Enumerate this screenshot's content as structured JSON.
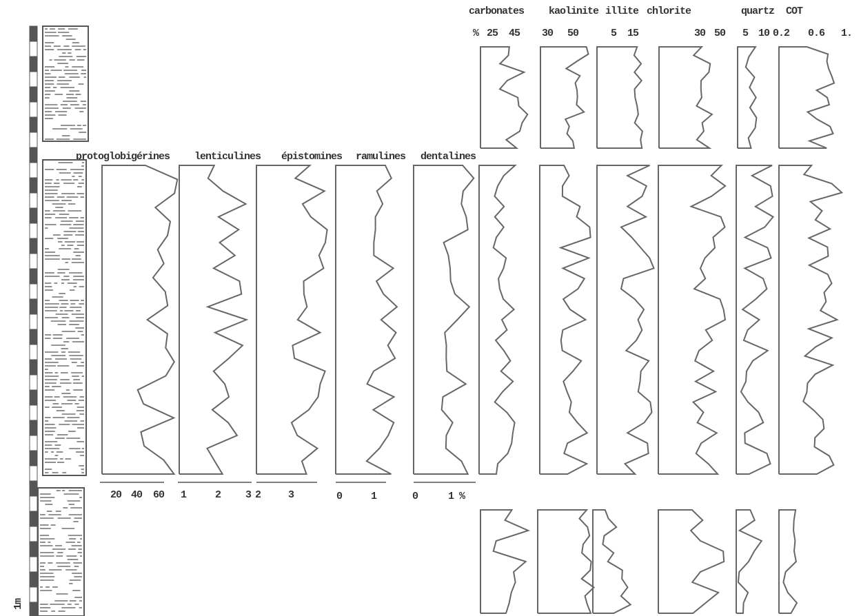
{
  "top_headers": [
    "carbonates",
    "kaolinite",
    "illite",
    "chlorite",
    "quartz",
    "COT"
  ],
  "top_ticks": [
    "%",
    "25",
    "45",
    "30",
    "50",
    "5",
    "15",
    "30",
    "50",
    "5",
    "10",
    "0.2",
    "0.6",
    "1."
  ],
  "fauna_headers": [
    "protoglobigérines",
    "lenticulines",
    "épistomines",
    "ramulines",
    "dentalines"
  ],
  "fauna_ticks": [
    "20",
    "40",
    "60",
    "1",
    "2",
    "3",
    "2",
    "3",
    "0",
    "1",
    "0",
    "1 %"
  ],
  "scale_label": "1m"
}
